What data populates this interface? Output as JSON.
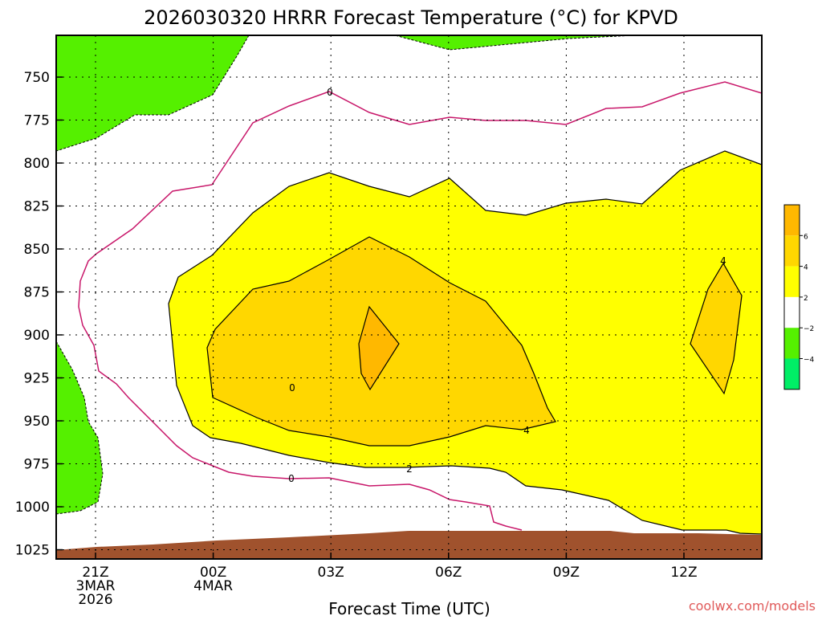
{
  "chart_data": {
    "type": "contour",
    "title": "2026030320 HRRR Forecast Temperature (°C) for KPVD",
    "xlabel": "Forecast Time (UTC)",
    "ylabel": "",
    "credit": "coolwx.com/models",
    "y_axis": {
      "ticks": [
        "750",
        "775",
        "800",
        "825",
        "850",
        "875",
        "900",
        "925",
        "950",
        "975",
        "1000",
        "1025"
      ]
    },
    "x_axis": {
      "ticks": [
        {
          "lines": [
            "21Z",
            "3MAR",
            "2026"
          ]
        },
        {
          "lines": [
            "00Z",
            "4MAR"
          ]
        },
        {
          "lines": [
            "03Z"
          ]
        },
        {
          "lines": [
            "06Z"
          ]
        },
        {
          "lines": [
            "09Z"
          ]
        },
        {
          "lines": [
            "12Z"
          ]
        }
      ]
    },
    "colorbar": {
      "ticks": [
        "6",
        "4",
        "2",
        "−2",
        "−4"
      ],
      "bins": [
        {
          "range": "6 to 8",
          "color": "#ffb800"
        },
        {
          "range": "4 to 6",
          "color": "#ffd700"
        },
        {
          "range": "2 to 4",
          "color": "#ffff00"
        },
        {
          "range": "-2 to 2",
          "color": "#ffffff"
        },
        {
          "range": "-4 to -2",
          "color": "#55f000"
        },
        {
          "range": "< -4",
          "color": "#00ee66"
        }
      ]
    },
    "contour_labels": [
      "0",
      "0",
      "0",
      "2",
      "4",
      "4"
    ],
    "colors": {
      "cold_fill": "#55f000",
      "warm_2": "#ffff00",
      "warm_4": "#ffd700",
      "warm_6": "#ffb800",
      "ground": "#a0522d",
      "zero_line": "#c8176a"
    },
    "grid": true
  }
}
